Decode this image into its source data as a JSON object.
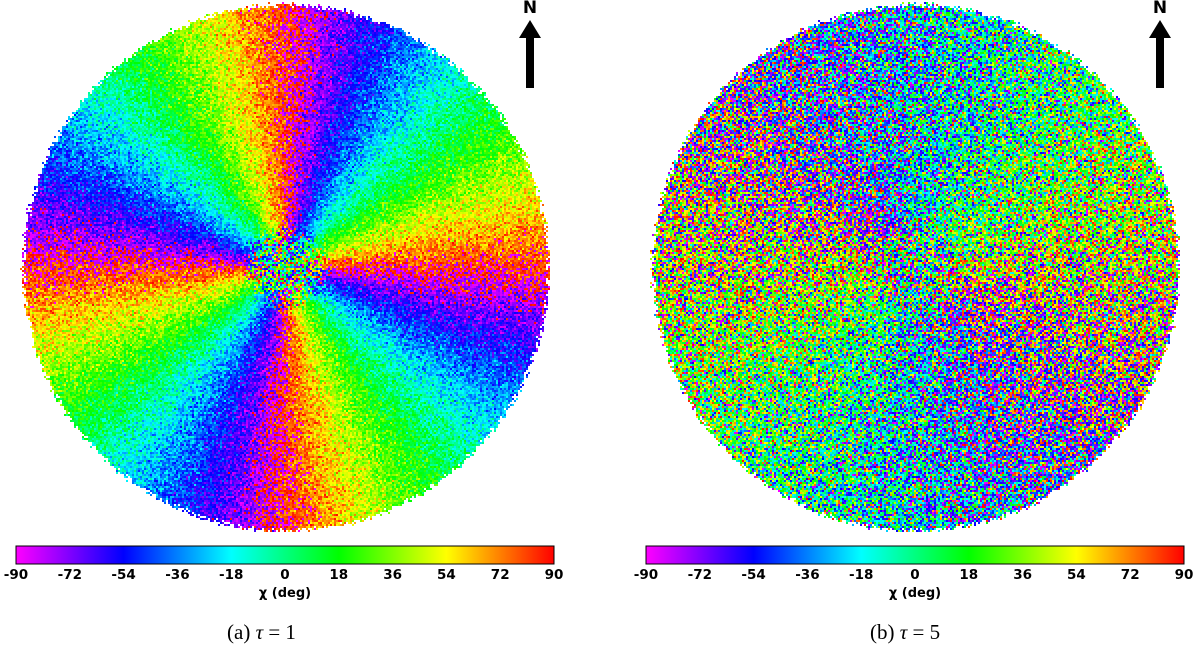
{
  "north_label": "N",
  "chart_data": [
    {
      "type": "heatmap",
      "panel": "(a)",
      "caption_prefix": "(a) ",
      "caption_symbol": "τ",
      "caption_rest": " = 1",
      "tau": 1,
      "angle_multiplier": -2,
      "angle_offset_deg": 85,
      "noise": 0.12,
      "colorbar": {
        "label": "χ (deg)",
        "range": [
          -90,
          90
        ],
        "ticks": [
          -90,
          -72,
          -54,
          -36,
          -18,
          0,
          18,
          36,
          54,
          72,
          90
        ],
        "colormap": [
          "#ff00ff",
          "#0000ff",
          "#00ffff",
          "#00ff00",
          "#ffff00",
          "#ff0000"
        ]
      }
    },
    {
      "type": "heatmap",
      "panel": "(b)",
      "caption_prefix": "(b) ",
      "caption_symbol": "τ",
      "caption_rest": " = 5",
      "tau": 5,
      "angle_multiplier": -1,
      "angle_offset_deg": 60,
      "noise": 0.45,
      "colorbar": {
        "label": "χ (deg)",
        "range": [
          -90,
          90
        ],
        "ticks": [
          -90,
          -72,
          -54,
          -36,
          -18,
          0,
          18,
          36,
          54,
          72,
          90
        ],
        "colormap": [
          "#ff00ff",
          "#0000ff",
          "#00ffff",
          "#00ff00",
          "#ffff00",
          "#ff0000"
        ]
      }
    }
  ]
}
